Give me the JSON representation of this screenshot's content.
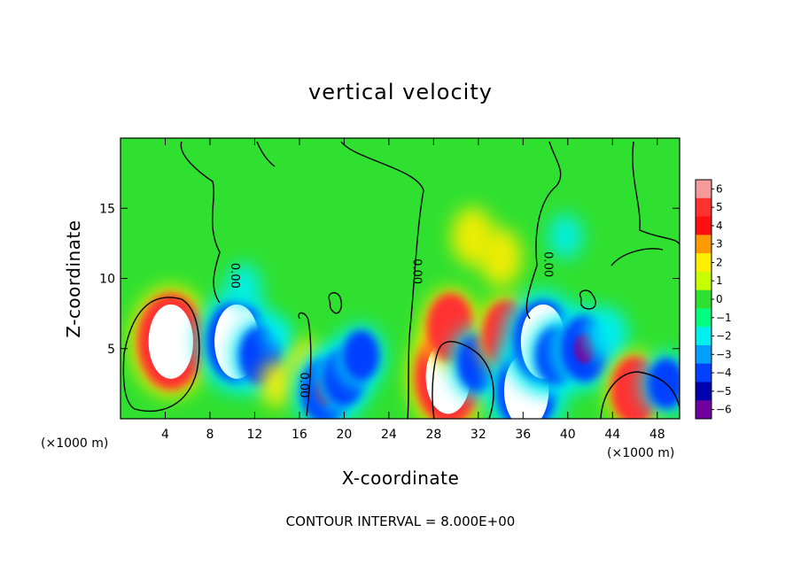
{
  "chart_data": {
    "type": "heatmap",
    "title": "vertical velocity",
    "xlabel": "X-coordinate",
    "ylabel": "Z-coordinate",
    "x_unit_label": "(×1000 m)",
    "x_unit_label_right": "(×1000 m)",
    "xlim": [
      0,
      50
    ],
    "ylim": [
      0,
      20
    ],
    "x_ticks": [
      4,
      8,
      12,
      16,
      20,
      24,
      28,
      32,
      36,
      40,
      44,
      48
    ],
    "y_ticks": [
      5,
      10,
      15
    ],
    "x_tick_labels": [
      "4",
      "8",
      "12",
      "16",
      "20",
      "24",
      "28",
      "32",
      "36",
      "40",
      "44",
      "48"
    ],
    "y_tick_labels": [
      "5",
      "10",
      "15"
    ],
    "colorbar": {
      "levels": [
        6,
        5,
        4,
        3,
        2,
        1,
        0,
        -1,
        -2,
        -3,
        -4,
        -5,
        -6
      ],
      "labels": [
        "6",
        "5",
        "4",
        "3",
        "2",
        "1",
        "0",
        "−1",
        "−2",
        "−3",
        "−4",
        "−5",
        "−6"
      ],
      "colors": [
        "#f49a9a",
        "#ff3030",
        "#ff1010",
        "#ff9a00",
        "#ffee00",
        "#c8ff00",
        "#30e030",
        "#00ff80",
        "#00f0f0",
        "#00a0ff",
        "#0040ff",
        "#0000b0",
        "#7000a0"
      ]
    },
    "contour_labels": [
      {
        "text": "0.00",
        "x": 9.9,
        "z": 10.2
      },
      {
        "text": "0.00",
        "x": 26.2,
        "z": 10.5
      },
      {
        "text": "0.00",
        "x": 37.9,
        "z": 11.0
      },
      {
        "text": "0.00",
        "x": 16.1,
        "z": 2.4
      }
    ],
    "features": [
      {
        "x": 4.5,
        "z": 5.5,
        "w": 8,
        "kind": "updraft-saturated"
      },
      {
        "x": 10.4,
        "z": 5.5,
        "w": -8,
        "kind": "downdraft-saturated"
      },
      {
        "x": 12.5,
        "z": 4.5,
        "w": -5
      },
      {
        "x": 14.0,
        "z": 2.5,
        "w": 2
      },
      {
        "x": 16.5,
        "z": 4.0,
        "w": 2
      },
      {
        "x": 18.3,
        "z": 2.0,
        "w": -6
      },
      {
        "x": 20.0,
        "z": 3.0,
        "w": -5
      },
      {
        "x": 21.5,
        "z": 4.5,
        "w": -4
      },
      {
        "x": 29.3,
        "z": 3.0,
        "w": 8,
        "kind": "updraft-saturated"
      },
      {
        "x": 29.5,
        "z": 6.5,
        "w": 5
      },
      {
        "x": 32.0,
        "z": 4.0,
        "w": -5
      },
      {
        "x": 34.5,
        "z": 6.0,
        "w": 5
      },
      {
        "x": 36.3,
        "z": 2.0,
        "w": -8,
        "kind": "downdraft-saturated"
      },
      {
        "x": 37.8,
        "z": 5.5,
        "w": -8,
        "kind": "downdraft-saturated"
      },
      {
        "x": 39.0,
        "z": 4.5,
        "w": -5
      },
      {
        "x": 41.5,
        "z": 5.0,
        "w": -6
      },
      {
        "x": 43.5,
        "z": 6.0,
        "w": -3
      },
      {
        "x": 46.0,
        "z": 2.0,
        "w": 5
      },
      {
        "x": 48.8,
        "z": 2.5,
        "w": -4
      },
      {
        "x": 31.5,
        "z": 13.0,
        "w": 3
      },
      {
        "x": 34.0,
        "z": 11.5,
        "w": 3
      },
      {
        "x": 39.8,
        "z": 13.0,
        "w": -2
      },
      {
        "x": 11.0,
        "z": 9.5,
        "w": -2
      },
      {
        "x": 14.0,
        "z": 6.0,
        "w": -1
      }
    ]
  },
  "footer": {
    "contour_interval": "CONTOUR INTERVAL = 8.000E+00"
  }
}
